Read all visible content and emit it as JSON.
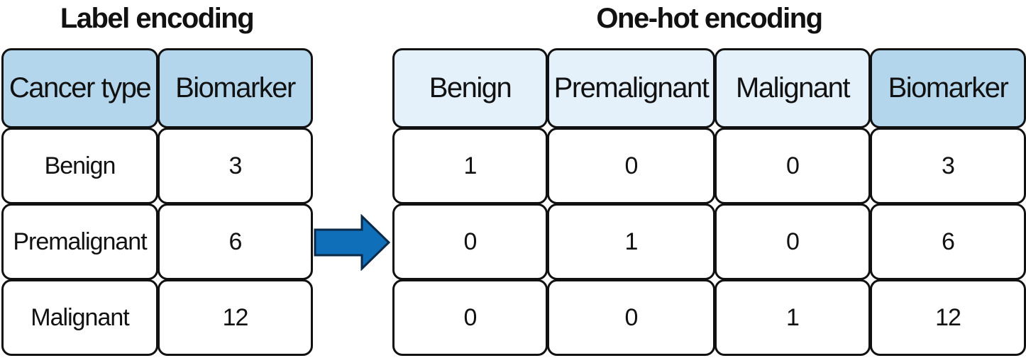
{
  "left": {
    "title": "Label encoding",
    "headers": [
      "Cancer type",
      "Biomarker"
    ],
    "rows": [
      [
        "Benign",
        "3"
      ],
      [
        "Premalignant",
        "6"
      ],
      [
        "Malignant",
        "12"
      ]
    ]
  },
  "right": {
    "title": "One-hot encoding",
    "headers": [
      "Benign",
      "Premalignant",
      "Malignant",
      "Biomarker"
    ],
    "rows": [
      [
        "1",
        "0",
        "0",
        "3"
      ],
      [
        "0",
        "1",
        "0",
        "6"
      ],
      [
        "0",
        "0",
        "1",
        "12"
      ]
    ]
  },
  "colors": {
    "header_dark": "#b4d6ec",
    "header_light": "#e4f1fa",
    "arrow": "#0f6fb9",
    "border": "#111111"
  },
  "icons": {
    "arrow": "right-arrow-icon"
  }
}
